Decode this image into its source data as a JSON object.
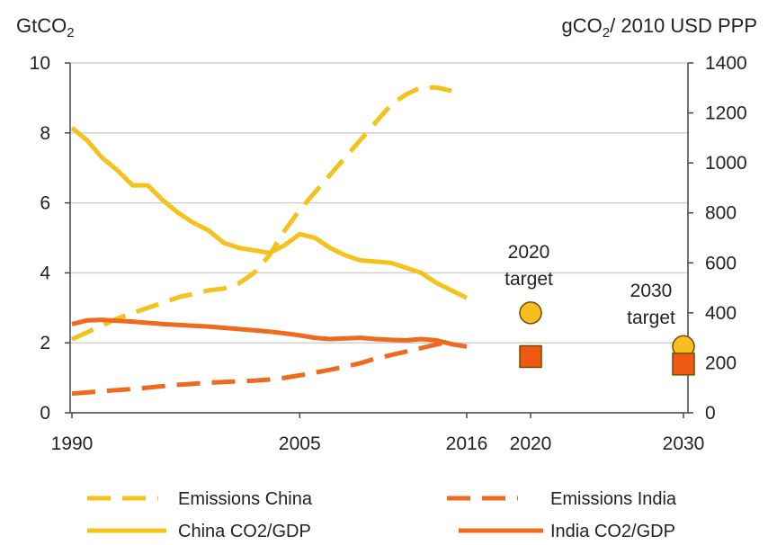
{
  "chart_data": {
    "type": "line",
    "left_axis": {
      "label": "GtCO",
      "label_sub": "2",
      "ylim": [
        0,
        10
      ],
      "ticks": [
        0,
        2,
        4,
        6,
        8,
        10
      ]
    },
    "right_axis": {
      "label_pre": "gCO",
      "label_sub": "2",
      "label_post": "/ 2010 USD PPP",
      "ylim": [
        0,
        1400
      ],
      "ticks": [
        0,
        200,
        400,
        600,
        800,
        1000,
        1200,
        1400
      ]
    },
    "x_ticks": [
      "1990",
      "2005",
      "2016",
      "2020",
      "2030"
    ],
    "series": [
      {
        "name": "Emissions China",
        "axis": "left",
        "style": "dashed",
        "color": "#F5C21B",
        "points": [
          [
            1990,
            2.1
          ],
          [
            1991,
            2.3
          ],
          [
            1992,
            2.5
          ],
          [
            1993,
            2.7
          ],
          [
            1994,
            2.85
          ],
          [
            1995,
            3.0
          ],
          [
            1996,
            3.15
          ],
          [
            1997,
            3.3
          ],
          [
            1998,
            3.4
          ],
          [
            1999,
            3.5
          ],
          [
            2000,
            3.55
          ],
          [
            2001,
            3.7
          ],
          [
            2002,
            4.0
          ],
          [
            2003,
            4.5
          ],
          [
            2004,
            5.2
          ],
          [
            2005,
            5.8
          ],
          [
            2006,
            6.3
          ],
          [
            2007,
            6.8
          ],
          [
            2008,
            7.3
          ],
          [
            2009,
            7.8
          ],
          [
            2010,
            8.3
          ],
          [
            2011,
            8.8
          ],
          [
            2012,
            9.1
          ],
          [
            2013,
            9.3
          ],
          [
            2014,
            9.3
          ],
          [
            2015,
            9.2
          ]
        ]
      },
      {
        "name": "China CO2/GDP",
        "axis": "right",
        "style": "solid",
        "color": "#F5C21B",
        "points": [
          [
            1990,
            1140
          ],
          [
            1991,
            1090
          ],
          [
            1992,
            1020
          ],
          [
            1993,
            970
          ],
          [
            1994,
            910
          ],
          [
            1995,
            910
          ],
          [
            1996,
            850
          ],
          [
            1997,
            800
          ],
          [
            1998,
            760
          ],
          [
            1999,
            730
          ],
          [
            2000,
            680
          ],
          [
            2001,
            660
          ],
          [
            2002,
            650
          ],
          [
            2003,
            640
          ],
          [
            2004,
            670
          ],
          [
            2005,
            715
          ],
          [
            2006,
            700
          ],
          [
            2007,
            660
          ],
          [
            2008,
            630
          ],
          [
            2009,
            610
          ],
          [
            2010,
            605
          ],
          [
            2011,
            600
          ],
          [
            2012,
            580
          ],
          [
            2013,
            560
          ],
          [
            2014,
            520
          ],
          [
            2015,
            490
          ],
          [
            2016,
            460
          ]
        ]
      },
      {
        "name": "Emissions India",
        "axis": "left",
        "style": "dashed",
        "color": "#EE6A1F",
        "points": [
          [
            1990,
            0.55
          ],
          [
            1991,
            0.58
          ],
          [
            1992,
            0.62
          ],
          [
            1993,
            0.65
          ],
          [
            1994,
            0.68
          ],
          [
            1995,
            0.72
          ],
          [
            1996,
            0.76
          ],
          [
            1997,
            0.8
          ],
          [
            1998,
            0.83
          ],
          [
            1999,
            0.86
          ],
          [
            2000,
            0.88
          ],
          [
            2001,
            0.9
          ],
          [
            2002,
            0.92
          ],
          [
            2003,
            0.95
          ],
          [
            2004,
            1.0
          ],
          [
            2005,
            1.07
          ],
          [
            2006,
            1.15
          ],
          [
            2007,
            1.23
          ],
          [
            2008,
            1.32
          ],
          [
            2009,
            1.42
          ],
          [
            2010,
            1.55
          ],
          [
            2011,
            1.65
          ],
          [
            2012,
            1.75
          ],
          [
            2013,
            1.85
          ],
          [
            2014,
            1.95
          ],
          [
            2015,
            2.05
          ]
        ]
      },
      {
        "name": "India CO2/GDP",
        "axis": "right",
        "style": "solid",
        "color": "#EE6A1F",
        "points": [
          [
            1990,
            355
          ],
          [
            1991,
            370
          ],
          [
            1992,
            372
          ],
          [
            1993,
            368
          ],
          [
            1994,
            365
          ],
          [
            1995,
            360
          ],
          [
            1996,
            355
          ],
          [
            1997,
            352
          ],
          [
            1998,
            348
          ],
          [
            1999,
            345
          ],
          [
            2000,
            340
          ],
          [
            2001,
            335
          ],
          [
            2002,
            330
          ],
          [
            2003,
            325
          ],
          [
            2004,
            318
          ],
          [
            2005,
            310
          ],
          [
            2006,
            300
          ],
          [
            2007,
            295
          ],
          [
            2008,
            298
          ],
          [
            2009,
            300
          ],
          [
            2010,
            295
          ],
          [
            2011,
            292
          ],
          [
            2012,
            290
          ],
          [
            2013,
            295
          ],
          [
            2014,
            290
          ],
          [
            2015,
            275
          ],
          [
            2016,
            265
          ]
        ]
      }
    ],
    "targets": [
      {
        "label_line1": "2020",
        "label_line2": "target",
        "x": 2020,
        "china_value": 400,
        "india_value": 225,
        "china_marker": "circle",
        "india_marker": "square"
      },
      {
        "label_line1": "2030",
        "label_line2": "target",
        "x": 2030,
        "china_value": 265,
        "india_value": 195,
        "china_marker": "circle",
        "india_marker": "square"
      }
    ],
    "legend": {
      "placement": "bottom",
      "entries": [
        {
          "label": "Emissions China",
          "color": "#F5C21B",
          "style": "dashed"
        },
        {
          "label": "Emissions India",
          "color": "#EE6A1F",
          "style": "dashed"
        },
        {
          "label": "China CO2/GDP",
          "color": "#F5C21B",
          "style": "solid"
        },
        {
          "label": "India CO2/GDP",
          "color": "#EE6A1F",
          "style": "solid"
        }
      ]
    },
    "grid": "horizontal",
    "colors": {
      "grid": "#d0d0d0",
      "marker_fill_china": "#F7BE22",
      "marker_fill_india": "#EF5A12",
      "marker_stroke": "#7a4a00"
    }
  }
}
